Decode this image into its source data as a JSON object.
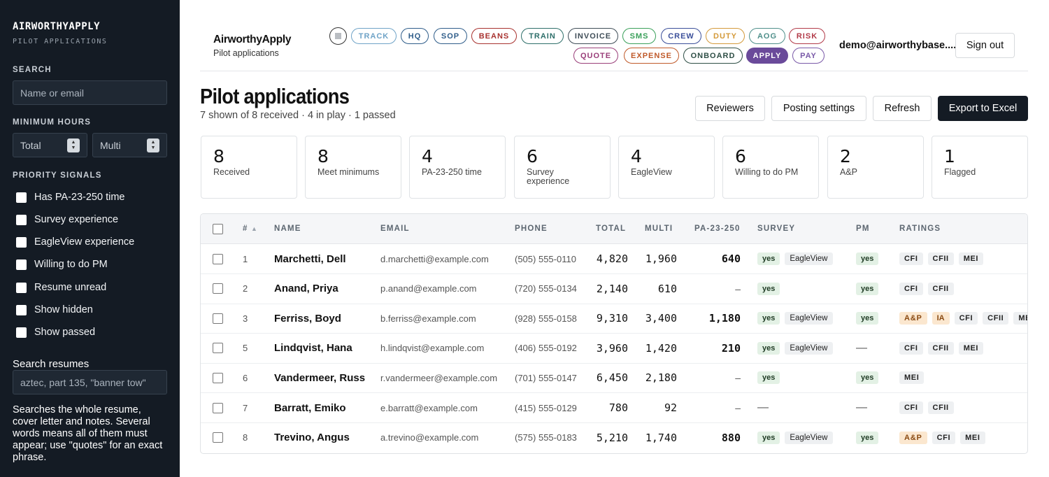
{
  "sidebar": {
    "brand_a": "AIRWORTHY",
    "brand_b": "APPLY",
    "brand_sub": "PILOT APPLICATIONS",
    "search_label": "SEARCH",
    "search_placeholder": "Name or email",
    "min_hours_label": "MINIMUM HOURS",
    "total_placeholder": "Total",
    "multi_placeholder": "Multi",
    "signals_label": "PRIORITY SIGNALS",
    "signals": [
      "Has PA-23-250 time",
      "Survey experience",
      "EagleView experience",
      "Willing to do PM",
      "Resume unread",
      "Show hidden",
      "Show passed"
    ],
    "resumes_label": "Search resumes",
    "resumes_placeholder": "aztec, part 135, \"banner tow\"",
    "help": "Searches the whole resume, cover letter and notes. Several words means all of them must appear; use \"quotes\" for an exact phrase."
  },
  "header": {
    "app_name": "AirworthyApply",
    "app_sub": "Pilot applications",
    "pills": [
      {
        "label": "TRACK",
        "color": "#6fa3c7"
      },
      {
        "label": "HQ",
        "color": "#2f5d8a"
      },
      {
        "label": "SOP",
        "color": "#2f5d8a"
      },
      {
        "label": "BEANS",
        "color": "#a8322f"
      },
      {
        "label": "TRAIN",
        "color": "#2e6f6a"
      },
      {
        "label": "INVOICE",
        "color": "#3f4d57"
      },
      {
        "label": "SMS",
        "color": "#3aa05a"
      },
      {
        "label": "CREW",
        "color": "#3b4f9a"
      },
      {
        "label": "DUTY",
        "color": "#d49a3a"
      },
      {
        "label": "AOG",
        "color": "#4f8f8a"
      },
      {
        "label": "RISK",
        "color": "#b23a48"
      },
      {
        "label": "QUOTE",
        "color": "#9a3f7a"
      },
      {
        "label": "EXPENSE",
        "color": "#c05a2a"
      },
      {
        "label": "ONBOARD",
        "color": "#2f4f46"
      },
      {
        "label": "APPLY",
        "color": "#6a4a9a",
        "active": true
      },
      {
        "label": "PAY",
        "color": "#7a5aa8"
      }
    ],
    "user_email": "demo@airworthybase....",
    "sign_out": "Sign out"
  },
  "page": {
    "title": "Pilot applications",
    "subtitle": "7 shown of 8 received · 4 in play · 1 passed",
    "buttons": {
      "reviewers": "Reviewers",
      "posting": "Posting settings",
      "refresh": "Refresh",
      "export": "Export to Excel"
    }
  },
  "stats": [
    {
      "value": "8",
      "label": "Received"
    },
    {
      "value": "8",
      "label": "Meet minimums"
    },
    {
      "value": "4",
      "label": "PA-23-250 time"
    },
    {
      "value": "6",
      "label": "Survey experience"
    },
    {
      "value": "4",
      "label": "EagleView"
    },
    {
      "value": "6",
      "label": "Willing to do PM"
    },
    {
      "value": "2",
      "label": "A&P"
    },
    {
      "value": "1",
      "label": "Flagged"
    }
  ],
  "table": {
    "columns": {
      "num": "#",
      "sort": "▲",
      "name": "NAME",
      "email": "EMAIL",
      "phone": "PHONE",
      "total": "TOTAL",
      "multi": "MULTI",
      "pa": "PA-23-250",
      "survey": "SURVEY",
      "pm": "PM",
      "ratings": "RATINGS"
    },
    "rows": [
      {
        "num": "1",
        "name": "Marchetti, Dell",
        "email": "d.marchetti@example.com",
        "phone": "(505) 555-0110",
        "total": "4,820",
        "multi": "1,960",
        "pa": "640",
        "survey": "yes",
        "eagleview": "EagleView",
        "pm": "yes",
        "ratings": [
          "CFI",
          "CFII",
          "MEI"
        ]
      },
      {
        "num": "2",
        "name": "Anand, Priya",
        "email": "p.anand@example.com",
        "phone": "(720) 555-0134",
        "total": "2,140",
        "multi": "610",
        "pa": "–",
        "survey": "yes",
        "eagleview": "",
        "pm": "yes",
        "ratings": [
          "CFI",
          "CFII"
        ]
      },
      {
        "num": "3",
        "name": "Ferriss, Boyd",
        "email": "b.ferriss@example.com",
        "phone": "(928) 555-0158",
        "total": "9,310",
        "multi": "3,400",
        "pa": "1,180",
        "survey": "yes",
        "eagleview": "EagleView",
        "pm": "yes",
        "ratings": [
          "A&P",
          "IA",
          "CFI",
          "CFII",
          "MEI"
        ]
      },
      {
        "num": "5",
        "name": "Lindqvist, Hana",
        "email": "h.lindqvist@example.com",
        "phone": "(406) 555-0192",
        "total": "3,960",
        "multi": "1,420",
        "pa": "210",
        "survey": "yes",
        "eagleview": "EagleView",
        "pm": "—",
        "ratings": [
          "CFI",
          "CFII",
          "MEI"
        ]
      },
      {
        "num": "6",
        "name": "Vandermeer, Russ",
        "email": "r.vandermeer@example.com",
        "phone": "(701) 555-0147",
        "total": "6,450",
        "multi": "2,180",
        "pa": "–",
        "survey": "yes",
        "eagleview": "",
        "pm": "yes",
        "ratings": [
          "MEI"
        ]
      },
      {
        "num": "7",
        "name": "Barratt, Emiko",
        "email": "e.barratt@example.com",
        "phone": "(415) 555-0129",
        "total": "780",
        "multi": "92",
        "pa": "–",
        "survey": "—",
        "eagleview": "",
        "pm": "—",
        "ratings": [
          "CFI",
          "CFII"
        ]
      },
      {
        "num": "8",
        "name": "Trevino, Angus",
        "email": "a.trevino@example.com",
        "phone": "(575) 555-0183",
        "total": "5,210",
        "multi": "1,740",
        "pa": "880",
        "survey": "yes",
        "eagleview": "EagleView",
        "pm": "yes",
        "ratings": [
          "A&P",
          "CFI",
          "MEI"
        ]
      }
    ]
  }
}
